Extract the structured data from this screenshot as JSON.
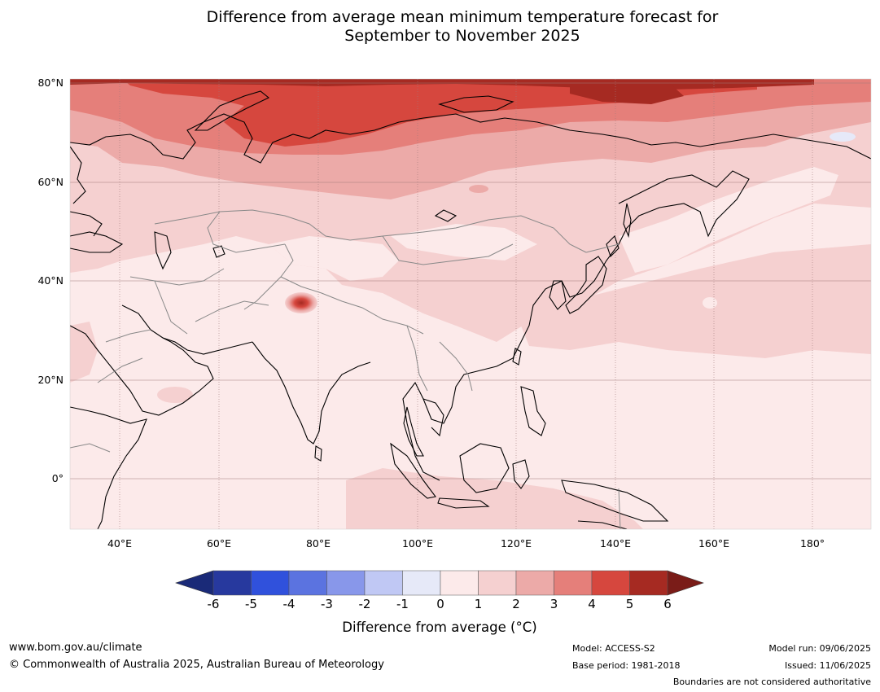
{
  "title": {
    "line1": "Difference from average mean minimum temperature forecast for",
    "line2": "September to November 2025"
  },
  "map": {
    "lat_labels": [
      "80°N",
      "60°N",
      "40°N",
      "20°N",
      "0°"
    ],
    "lon_labels": [
      "40°E",
      "60°E",
      "80°E",
      "100°E",
      "120°E",
      "140°E",
      "160°E",
      "180°"
    ],
    "extent": {
      "lon_min": 30,
      "lon_max": 191,
      "lat_min": -10,
      "lat_max": 81
    }
  },
  "colorbar": {
    "ticks": [
      "-6",
      "-5",
      "-4",
      "-3",
      "-2",
      "-1",
      "0",
      "1",
      "2",
      "3",
      "4",
      "5",
      "6"
    ],
    "colors": [
      "#27399e",
      "#3051dc",
      "#5b73e0",
      "#8897ea",
      "#c0c8f4",
      "#e6e9f8",
      "#fceaea",
      "#f5d0d0",
      "#ecaaa8",
      "#e57f7a",
      "#d6473e",
      "#a62a22"
    ],
    "under_color": "#1a2a78",
    "over_color": "#7a1c18",
    "label": "Difference from average (°C)"
  },
  "footer": {
    "website": "www.bom.gov.au/climate",
    "copyright": "© Commonwealth of Australia 2025, Australian Bureau of Meteorology",
    "model": "Model: ACCESS-S2",
    "base_period": "Base period: 1981-2018",
    "model_run": "Model run: 09/06/2025",
    "issued": "Issued: 11/06/2025",
    "disclaimer": "Boundaries are not considered authoritative"
  }
}
